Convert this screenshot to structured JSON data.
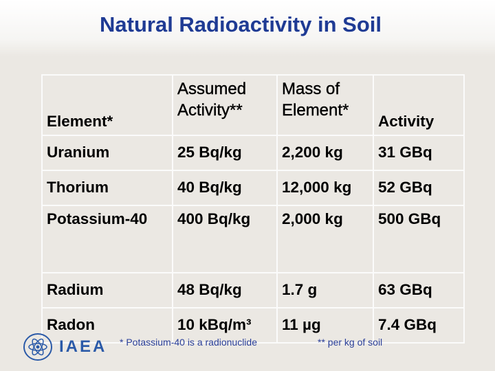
{
  "title": "Natural Radioactivity in Soil",
  "table": {
    "header": [
      "Element*",
      "Assumed Activity**",
      "Mass of Element*",
      "Activity"
    ],
    "rows": [
      [
        "Uranium",
        "25 Bq/kg",
        "2,200 kg",
        "31 GBq"
      ],
      [
        "Thorium",
        "40 Bq/kg",
        "12,000 kg",
        "52 GBq"
      ],
      [
        "Potassium-40",
        "400 Bq/kg",
        "2,000 kg",
        "500 GBq"
      ],
      [
        "Radium",
        "48 Bq/kg",
        "1.7 g",
        "63 GBq"
      ],
      [
        "Radon",
        "10 kBq/m³",
        "11 µg",
        "7.4 GBq"
      ]
    ]
  },
  "footnotes": [
    "* Potassium-40 is a radionuclide",
    "** per kg of soil"
  ],
  "logo": "IAEA"
}
